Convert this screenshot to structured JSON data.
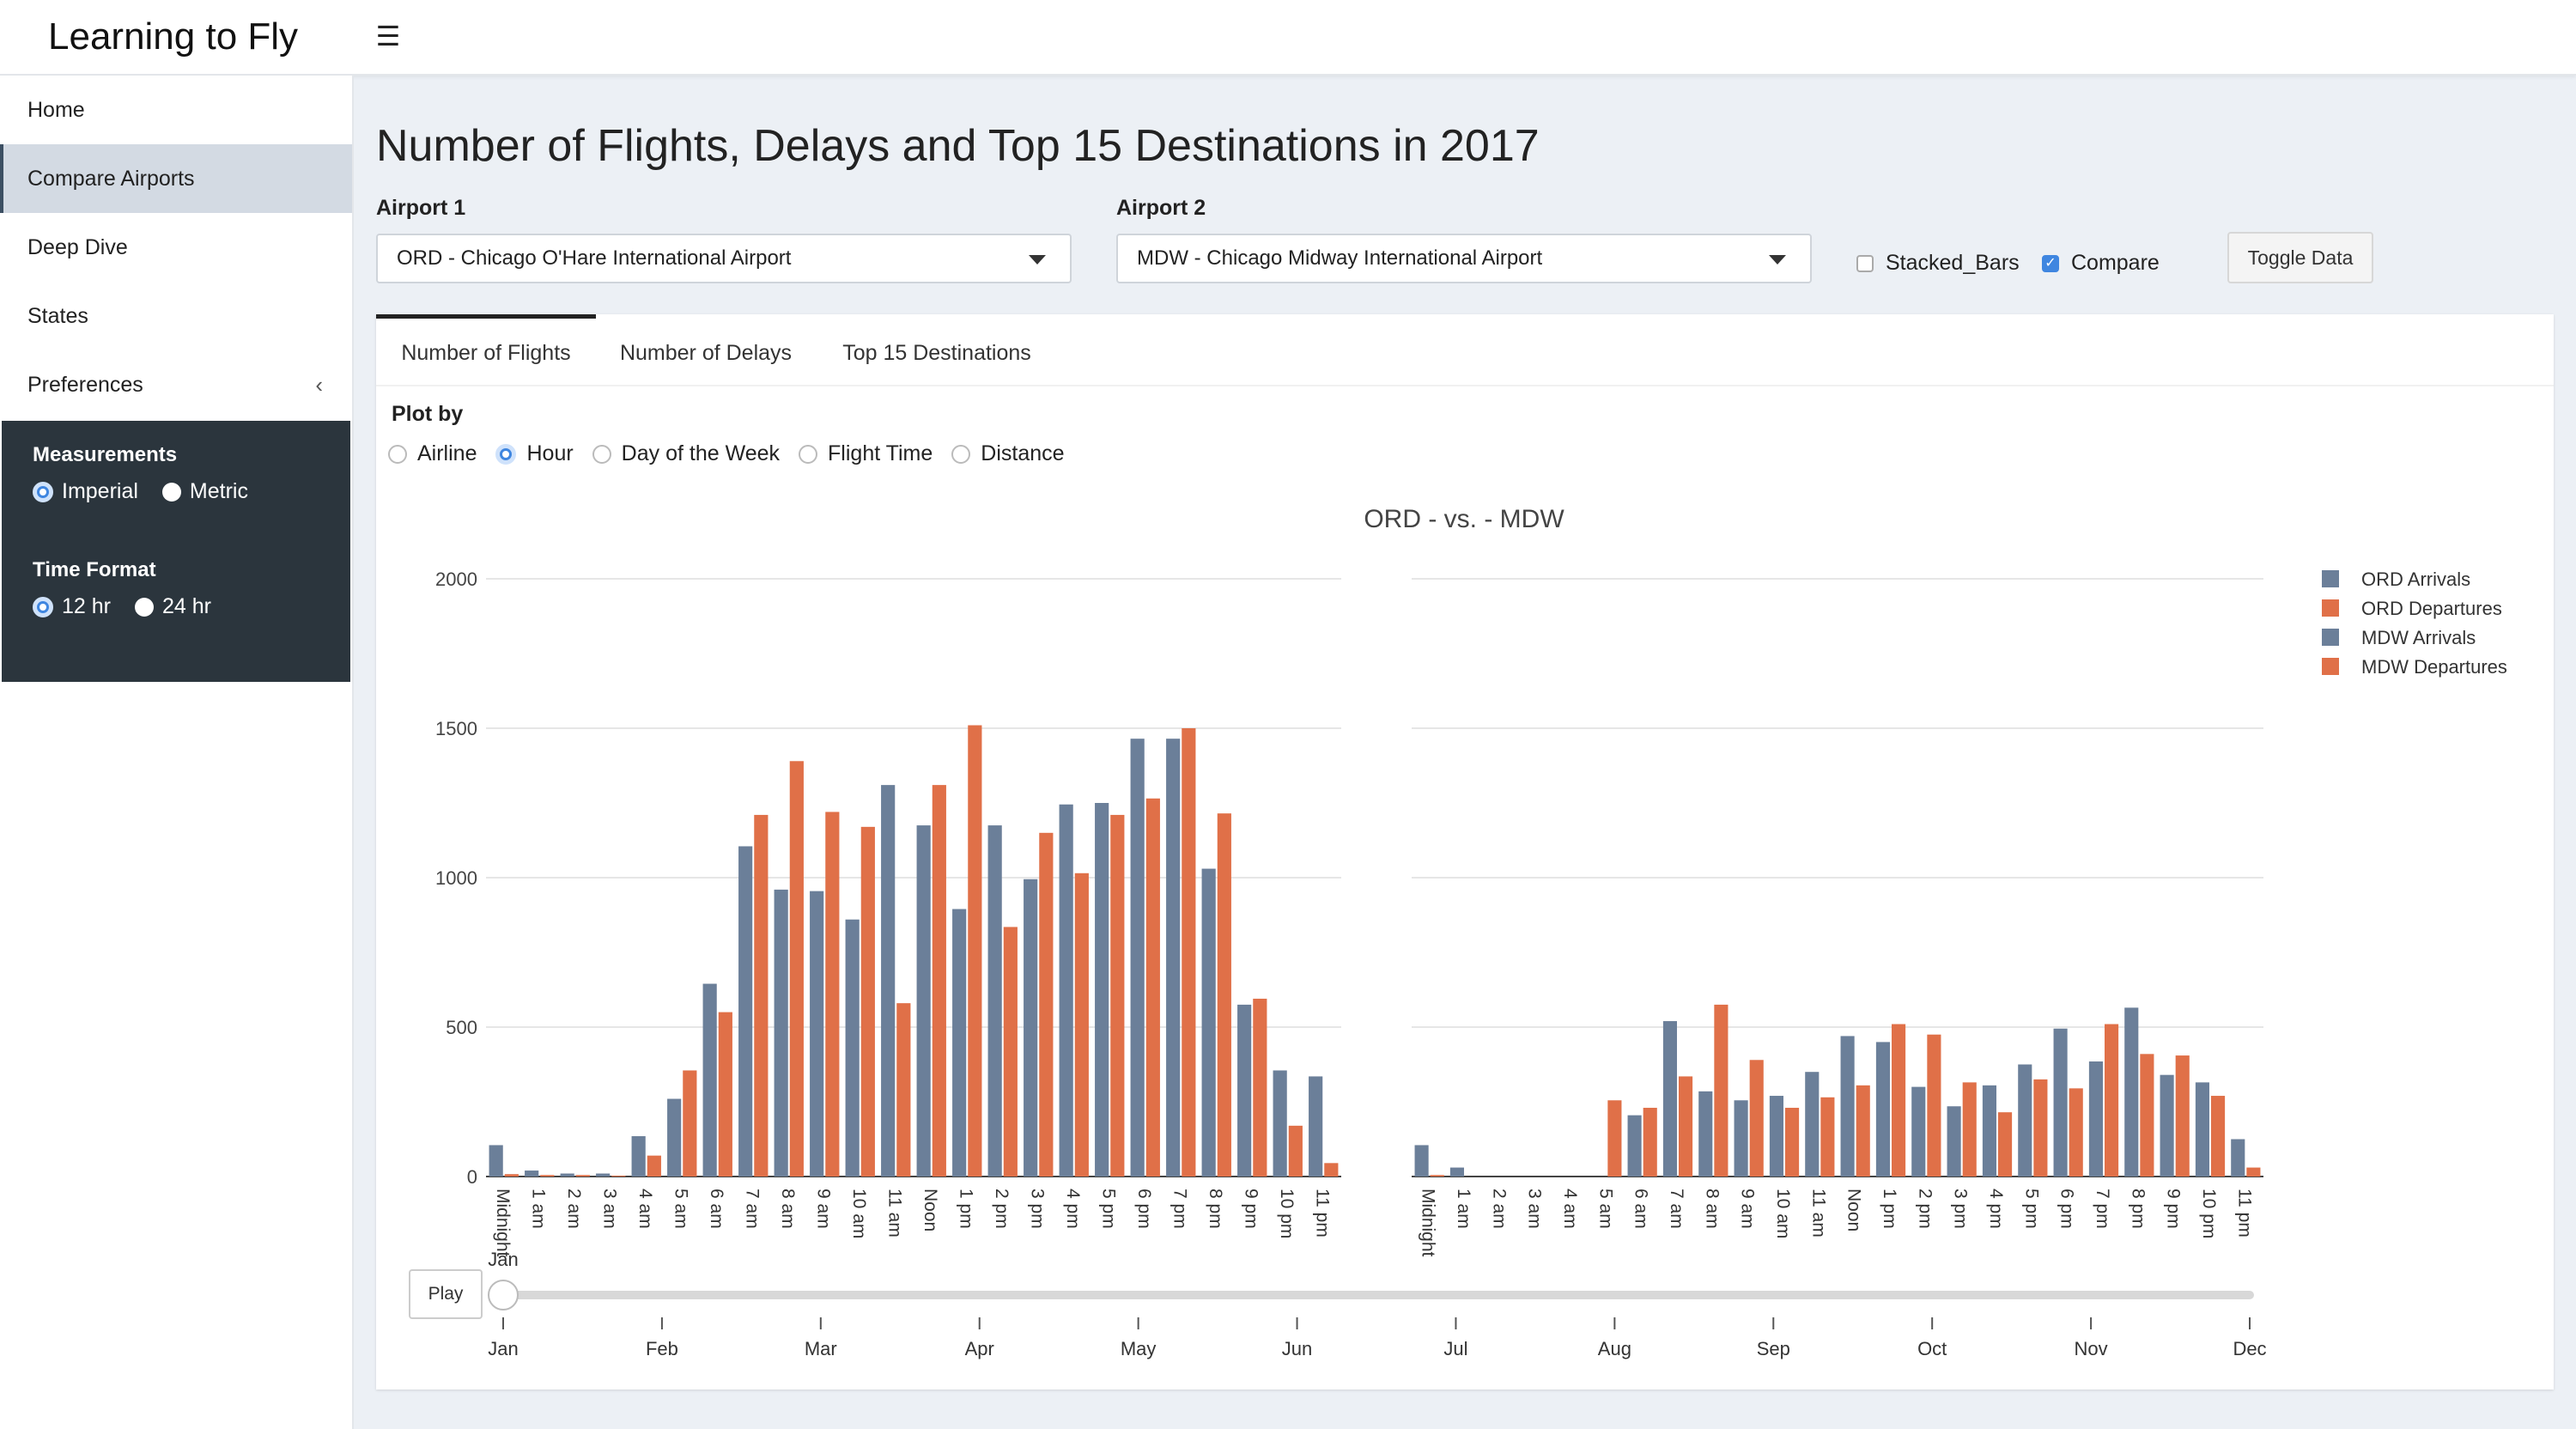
{
  "app": {
    "title": "Learning to Fly"
  },
  "sidebar": {
    "items": [
      {
        "label": "Home"
      },
      {
        "label": "Compare Airports"
      },
      {
        "label": "Deep Dive"
      },
      {
        "label": "States"
      },
      {
        "label": "Preferences"
      }
    ],
    "measurements": {
      "heading": "Measurements",
      "options": [
        "Imperial",
        "Metric"
      ],
      "selected": "Imperial"
    },
    "time_format": {
      "heading": "Time Format",
      "options": [
        "12 hr",
        "24 hr"
      ],
      "selected": "12 hr"
    }
  },
  "main": {
    "title": "Number of Flights, Delays and Top 15 Destinations in 2017",
    "airport1": {
      "label": "Airport 1",
      "value": "ORD - Chicago O'Hare International Airport"
    },
    "airport2": {
      "label": "Airport 2",
      "value": "MDW - Chicago Midway International Airport"
    },
    "stacked_bars": {
      "label": "Stacked_Bars",
      "checked": false
    },
    "compare": {
      "label": "Compare",
      "checked": true
    },
    "toggle_label": "Toggle Data",
    "tabs": [
      {
        "label": "Number of Flights",
        "active": true
      },
      {
        "label": "Number of Delays",
        "active": false
      },
      {
        "label": "Top 15 Destinations",
        "active": false
      }
    ],
    "plot_by": {
      "label": "Plot by",
      "options": [
        "Airline",
        "Hour",
        "Day of the Week",
        "Flight Time",
        "Distance"
      ],
      "selected": "Hour"
    },
    "play_label": "Play",
    "slider": {
      "ticks": [
        "Jan",
        "Feb",
        "Mar",
        "Apr",
        "May",
        "Jun",
        "Jul",
        "Aug",
        "Sep",
        "Oct",
        "Nov",
        "Dec"
      ],
      "current": "Jan"
    }
  },
  "colors": {
    "arrivals": "#6b7f99",
    "departures": "#e07048",
    "dark_panel": "#2b353d",
    "accent": "#3f86e0"
  },
  "chart_data": [
    {
      "type": "bar",
      "title": "ORD - vs. - MDW",
      "categories": [
        "Midnight",
        "1 am",
        "2 am",
        "3 am",
        "4 am",
        "5 am",
        "6 am",
        "7 am",
        "8 am",
        "9 am",
        "10 am",
        "11 am",
        "Noon",
        "1 pm",
        "2 pm",
        "3 pm",
        "4 pm",
        "5 pm",
        "6 pm",
        "7 pm",
        "8 pm",
        "9 pm",
        "10 pm",
        "11 pm"
      ],
      "series": [
        {
          "name": "ORD Arrivals",
          "color": "#6b7f99",
          "values": [
            105,
            20,
            10,
            10,
            135,
            260,
            645,
            1105,
            960,
            955,
            860,
            1310,
            1175,
            895,
            1175,
            995,
            1245,
            1250,
            1465,
            1465,
            1030,
            575,
            355,
            335
          ]
        },
        {
          "name": "ORD Departures",
          "color": "#e07048",
          "values": [
            8,
            5,
            5,
            3,
            70,
            355,
            550,
            1210,
            1390,
            1220,
            1170,
            580,
            1310,
            1510,
            835,
            1150,
            1015,
            1210,
            1265,
            1500,
            1215,
            595,
            170,
            45
          ]
        }
      ],
      "ylim": [
        0,
        2000
      ],
      "yticks": [
        0,
        500,
        1000,
        1500,
        2000
      ],
      "grid": true
    },
    {
      "type": "bar",
      "title": "",
      "categories": [
        "Midnight",
        "1 am",
        "2 am",
        "3 am",
        "4 am",
        "5 am",
        "6 am",
        "7 am",
        "8 am",
        "9 am",
        "10 am",
        "11 am",
        "Noon",
        "1 pm",
        "2 pm",
        "3 pm",
        "4 pm",
        "5 pm",
        "6 pm",
        "7 pm",
        "8 pm",
        "9 pm",
        "10 pm",
        "11 pm"
      ],
      "series": [
        {
          "name": "MDW Arrivals",
          "color": "#6b7f99",
          "values": [
            105,
            30,
            0,
            0,
            0,
            0,
            205,
            520,
            285,
            255,
            270,
            350,
            470,
            450,
            300,
            235,
            305,
            375,
            495,
            385,
            565,
            340,
            315,
            125
          ]
        },
        {
          "name": "MDW Departures",
          "color": "#e07048",
          "values": [
            5,
            0,
            0,
            0,
            0,
            255,
            230,
            335,
            575,
            390,
            230,
            265,
            305,
            510,
            475,
            315,
            215,
            325,
            295,
            510,
            410,
            405,
            270,
            30
          ]
        }
      ],
      "ylim": [
        0,
        2000
      ],
      "grid": true
    }
  ],
  "legend": [
    "ORD Arrivals",
    "ORD Departures",
    "MDW Arrivals",
    "MDW Departures"
  ]
}
